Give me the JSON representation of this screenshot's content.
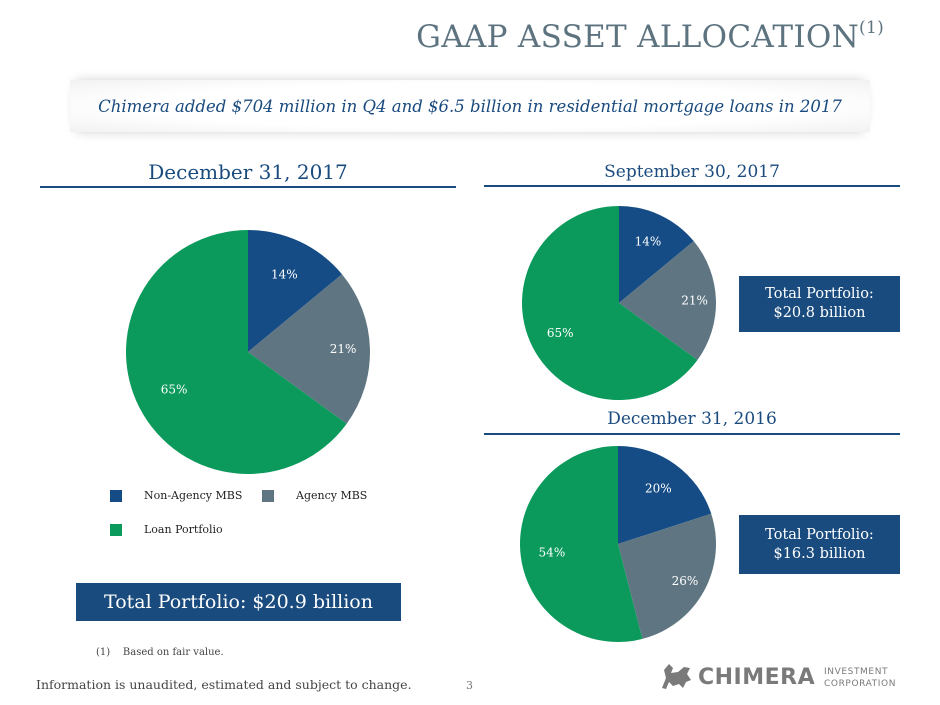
{
  "header": {
    "title": "GAAP ASSET ALLOCATION",
    "title_sup": "(1)"
  },
  "banner": {
    "text": "Chimera added $704 million in Q4 and $6.5 billion in residential mortgage loans in 2017"
  },
  "colors": {
    "non_agency": "#154c85",
    "agency": "#5f7682",
    "loan": "#0b9a5c",
    "navy": "#1a4b7e"
  },
  "legend": {
    "non_agency": "Non-Agency MBS",
    "agency": "Agency MBS",
    "loan": "Loan Portfolio"
  },
  "chart_data": [
    {
      "type": "pie",
      "title": "December 31, 2017",
      "categories": [
        "Non-Agency MBS",
        "Agency MBS",
        "Loan Portfolio"
      ],
      "values": [
        14,
        21,
        65
      ],
      "labels": [
        "14%",
        "21%",
        "65%"
      ],
      "total": "Total Portfolio: $20.9 billion"
    },
    {
      "type": "pie",
      "title": "September 30, 2017",
      "categories": [
        "Non-Agency MBS",
        "Agency MBS",
        "Loan Portfolio"
      ],
      "values": [
        14,
        21,
        65
      ],
      "labels": [
        "14%",
        "21%",
        "65%"
      ],
      "total_line1": "Total Portfolio:",
      "total_line2": "$20.8 billion"
    },
    {
      "type": "pie",
      "title": "December 31, 2016",
      "categories": [
        "Non-Agency MBS",
        "Agency MBS",
        "Loan Portfolio"
      ],
      "values": [
        20,
        26,
        54
      ],
      "labels": [
        "20%",
        "26%",
        "54%"
      ],
      "total_line1": "Total Portfolio:",
      "total_line2": "$16.3 billion"
    }
  ],
  "footer": {
    "footnote_marker": "(1)",
    "footnote": "Based on fair value.",
    "disclaimer": "Information is unaudited, estimated and subject to change.",
    "page_number": "3"
  },
  "logo": {
    "name": "CHIMERA",
    "line1": "INVESTMENT",
    "line2": "CORPORATION"
  }
}
